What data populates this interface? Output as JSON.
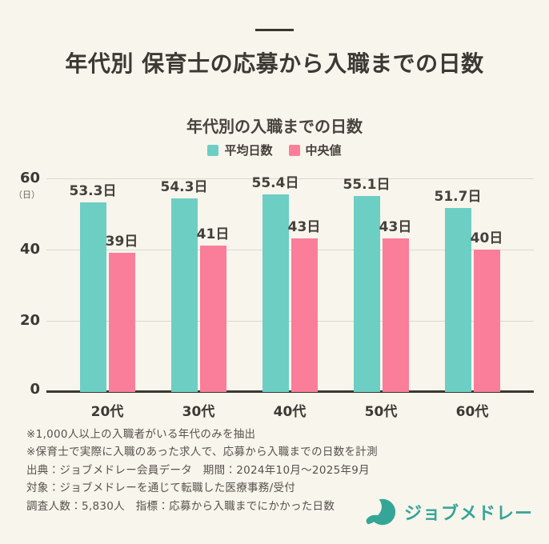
{
  "header": {
    "title": "年代別 保育士の応募から入職までの日数"
  },
  "chart": {
    "title": "年代別の入職までの日数",
    "unit_label": "（日）",
    "y_ticks": [
      "60",
      "40",
      "20",
      "0"
    ],
    "legend": [
      {
        "label": "平均日数"
      },
      {
        "label": "中央値"
      }
    ]
  },
  "chart_data": {
    "type": "bar",
    "title": "年代別の入職までの日数",
    "categories": [
      "20代",
      "30代",
      "40代",
      "50代",
      "60代"
    ],
    "category_keys": [
      "20s",
      "30s",
      "40s",
      "50s",
      "60s"
    ],
    "series": [
      {
        "key": "average",
        "name": "平均日数",
        "color": "#6DCEC4",
        "values": [
          53.3,
          54.3,
          55.4,
          55.1,
          51.7
        ],
        "labels": [
          "53.3日",
          "54.3日",
          "55.4日",
          "55.1日",
          "51.7日"
        ]
      },
      {
        "key": "median",
        "name": "中央値",
        "color": "#FA7E99",
        "values": [
          39,
          41,
          43,
          43,
          40
        ],
        "labels": [
          "39日",
          "41日",
          "43日",
          "43日",
          "40日"
        ]
      }
    ],
    "ylabel": "（日）",
    "ylim": [
      0,
      60
    ],
    "yticks": [
      0,
      20,
      40,
      60
    ],
    "grid": true,
    "legend_position": "top"
  },
  "footnotes": [
    "※1,000人以上の入職者がいる年代のみを抽出",
    "※保育士で実際に入職のあった求人で、応募から入職までの日数を計測",
    "出典：ジョブメドレー会員データ　期間：2024年10月～2025年9月",
    "対象：ジョブメドレーを通じて転職した医療事務/受付",
    "調査人数：5,830人　指標：応募から入職までにかかった日数"
  ],
  "logo": {
    "text": "ジョブメドレー",
    "color": "#35A597",
    "icon": "crescent-j-icon"
  },
  "colors": {
    "background": "#F8F5EC",
    "title_text": "#3C3833",
    "grid": "#DCD8D0",
    "axis": "#3A3731",
    "note_text": "#57534D"
  }
}
